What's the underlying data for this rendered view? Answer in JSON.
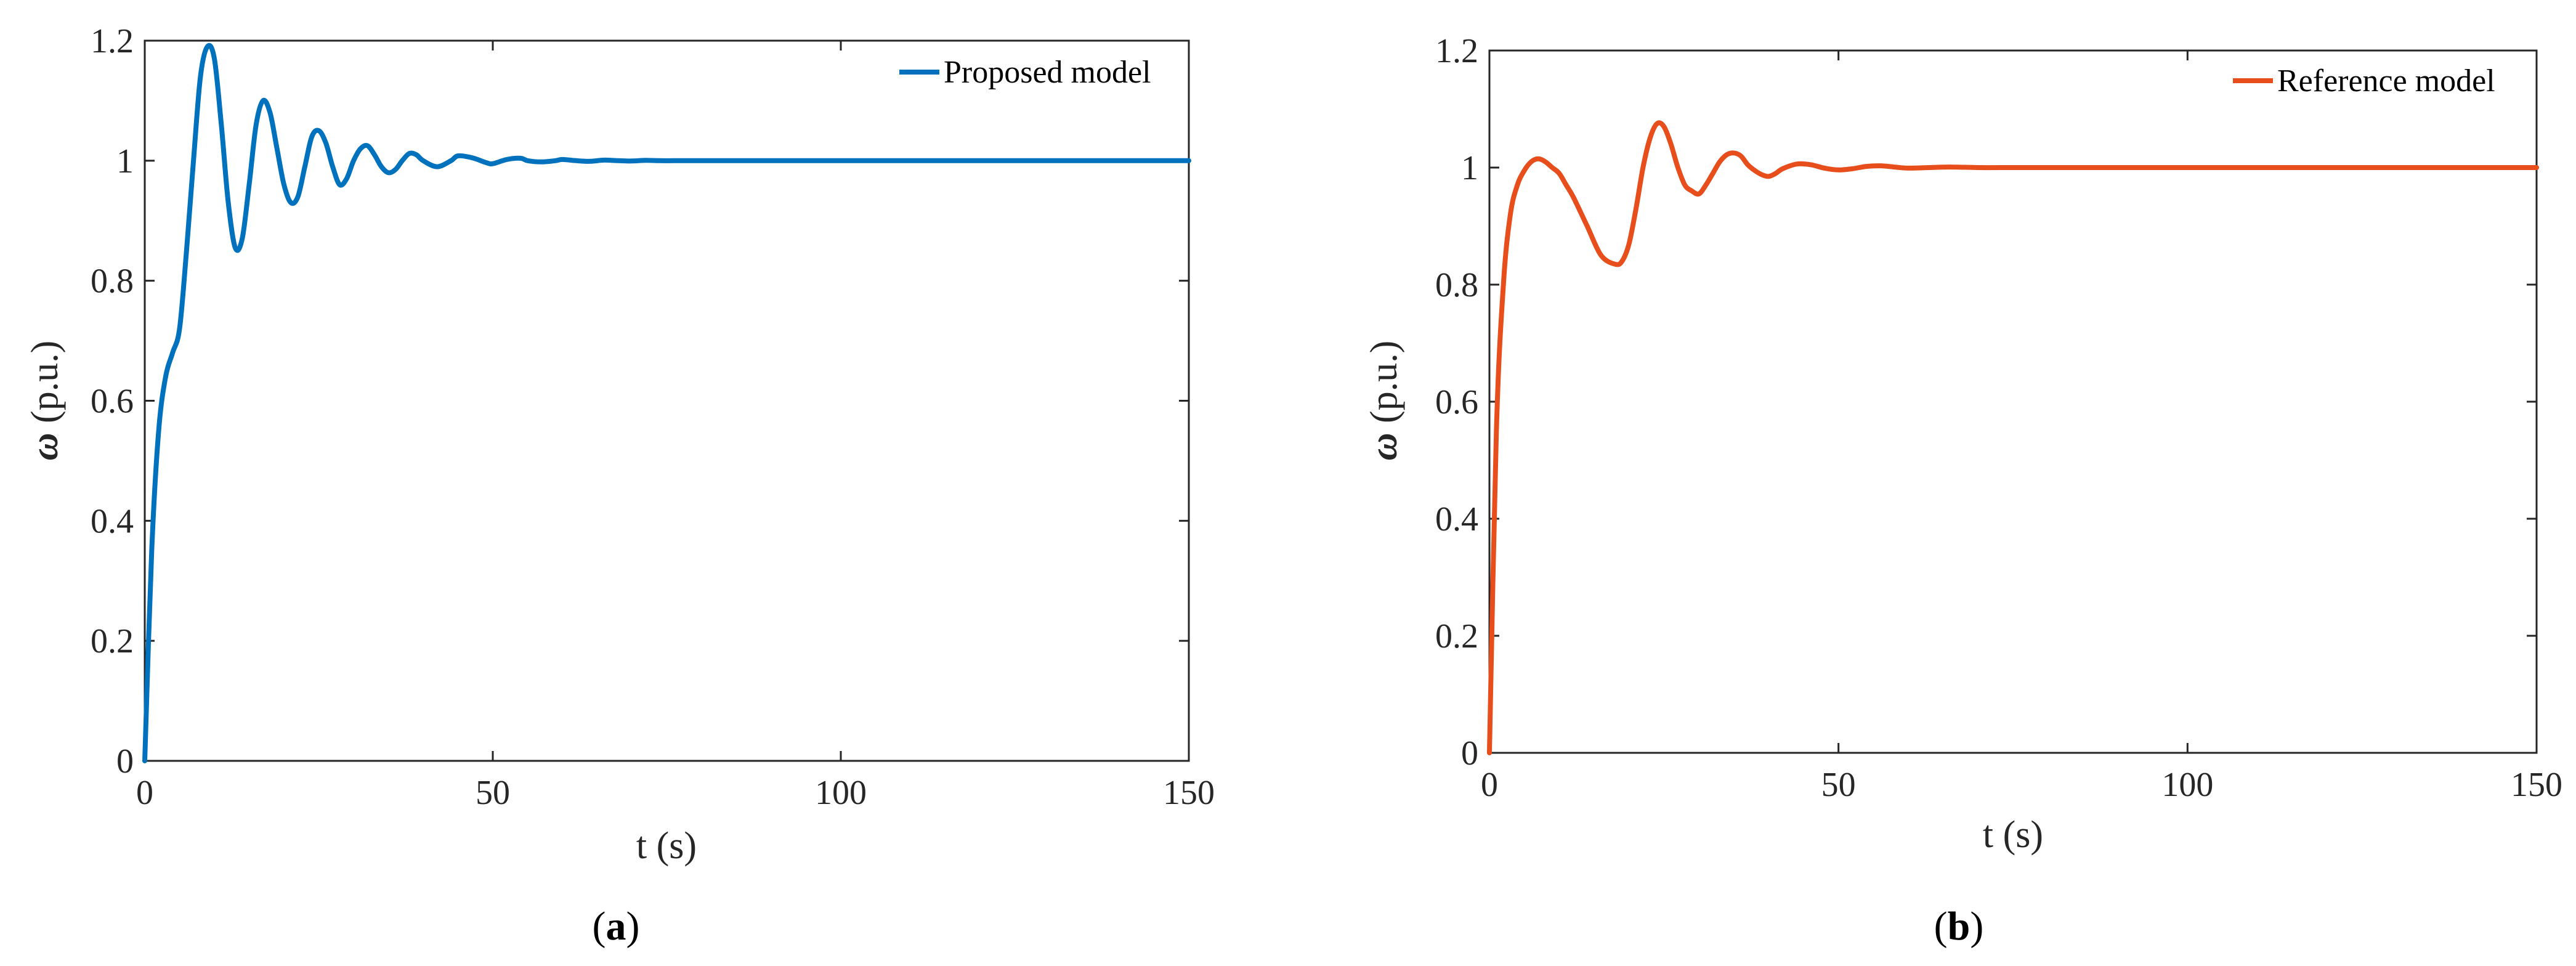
{
  "chart_data": [
    {
      "type": "line",
      "panel": "a",
      "caption_letter": "a",
      "caption_open": "(",
      "caption_close": ")",
      "xlabel": "t (s)",
      "ylabel_symbol": "ω",
      "ylabel_unit": " (p.u.)",
      "xlim": [
        0,
        150
      ],
      "ylim": [
        0,
        1.2
      ],
      "xticks": [
        0,
        50,
        100,
        150
      ],
      "xtick_labels": [
        "0",
        "50",
        "100",
        "150"
      ],
      "yticks": [
        0,
        0.2,
        0.4,
        0.6,
        0.8,
        1,
        1.2
      ],
      "ytick_labels": [
        "0",
        "0.2",
        "0.4",
        "0.6",
        "0.8",
        "1",
        "1.2"
      ],
      "grid": false,
      "legend_position": "top-right",
      "series": [
        {
          "name": "Proposed model",
          "color": "#0072BD",
          "x": [
            0,
            1,
            2,
            3,
            4,
            5,
            6,
            7,
            8,
            9,
            10,
            11,
            12,
            13,
            14,
            15,
            16,
            17,
            18,
            19,
            20,
            21,
            22,
            23,
            24,
            25,
            26,
            27,
            28,
            29,
            30,
            31,
            32,
            33,
            34,
            35,
            36,
            37,
            38,
            39,
            40,
            42,
            44,
            45,
            47,
            49,
            50,
            52,
            54,
            55,
            57,
            59,
            60,
            62,
            64,
            66,
            68,
            70,
            72,
            74,
            76,
            78,
            80,
            85,
            90,
            100,
            110,
            120,
            130,
            140,
            150
          ],
          "y": [
            0,
            0.35,
            0.55,
            0.64,
            0.68,
            0.72,
            0.85,
            1.0,
            1.14,
            1.19,
            1.17,
            1.06,
            0.93,
            0.855,
            0.87,
            0.96,
            1.06,
            1.1,
            1.08,
            1.02,
            0.96,
            0.93,
            0.94,
            0.99,
            1.04,
            1.05,
            1.03,
            0.99,
            0.96,
            0.97,
            1.0,
            1.02,
            1.025,
            1.01,
            0.99,
            0.98,
            0.985,
            1.0,
            1.012,
            1.01,
            1.0,
            0.99,
            1.0,
            1.008,
            1.005,
            0.997,
            0.995,
            1.002,
            1.004,
            1.0,
            0.998,
            1.0,
            1.002,
            1.0,
            0.999,
            1.001,
            1.0,
            0.9995,
            1.0005,
            1.0,
            1.0,
            1.0,
            1.0,
            1.0,
            1.0,
            1.0,
            1.0,
            1.0,
            1.0,
            1.0,
            1.0
          ]
        }
      ]
    },
    {
      "type": "line",
      "panel": "b",
      "caption_letter": "b",
      "caption_open": "(",
      "caption_close": ")",
      "xlabel": "t (s)",
      "ylabel_symbol": "ω",
      "ylabel_unit": " (p.u.)",
      "xlim": [
        0,
        150
      ],
      "ylim": [
        0,
        1.2
      ],
      "xticks": [
        0,
        50,
        100,
        150
      ],
      "xtick_labels": [
        "0",
        "50",
        "100",
        "150"
      ],
      "yticks": [
        0,
        0.2,
        0.4,
        0.6,
        0.8,
        1,
        1.2
      ],
      "ytick_labels": [
        "0",
        "0.2",
        "0.4",
        "0.6",
        "0.8",
        "1",
        "1.2"
      ],
      "grid": false,
      "legend_position": "top-right",
      "series": [
        {
          "name": "Reference model",
          "color": "#E84E1B",
          "x": [
            0,
            1,
            2,
            3,
            4,
            5,
            6,
            7,
            8,
            9,
            10,
            11,
            12,
            14,
            16,
            18,
            19,
            20,
            21,
            22,
            23,
            24,
            25,
            26,
            27,
            28,
            29,
            30,
            31,
            32,
            33,
            34,
            35,
            36,
            37,
            38,
            39,
            40,
            41,
            42,
            44,
            46,
            48,
            50,
            52,
            54,
            56,
            58,
            60,
            63,
            66,
            70,
            75,
            80,
            90,
            100,
            110,
            120,
            130,
            140,
            150
          ],
          "y": [
            0,
            0.55,
            0.8,
            0.92,
            0.97,
            0.995,
            1.01,
            1.015,
            1.01,
            1.0,
            0.99,
            0.97,
            0.95,
            0.9,
            0.85,
            0.835,
            0.84,
            0.87,
            0.93,
            1.0,
            1.05,
            1.075,
            1.07,
            1.04,
            1.0,
            0.97,
            0.96,
            0.955,
            0.97,
            0.99,
            1.01,
            1.022,
            1.025,
            1.02,
            1.005,
            0.995,
            0.988,
            0.985,
            0.99,
            0.998,
            1.006,
            1.005,
            0.999,
            0.996,
            0.998,
            1.002,
            1.003,
            1.001,
            0.999,
            1.0,
            1.001,
            1.0,
            1.0,
            1.0,
            1.0,
            1.0,
            1.0,
            1.0,
            1.0,
            1.0,
            1.0
          ]
        }
      ]
    }
  ]
}
